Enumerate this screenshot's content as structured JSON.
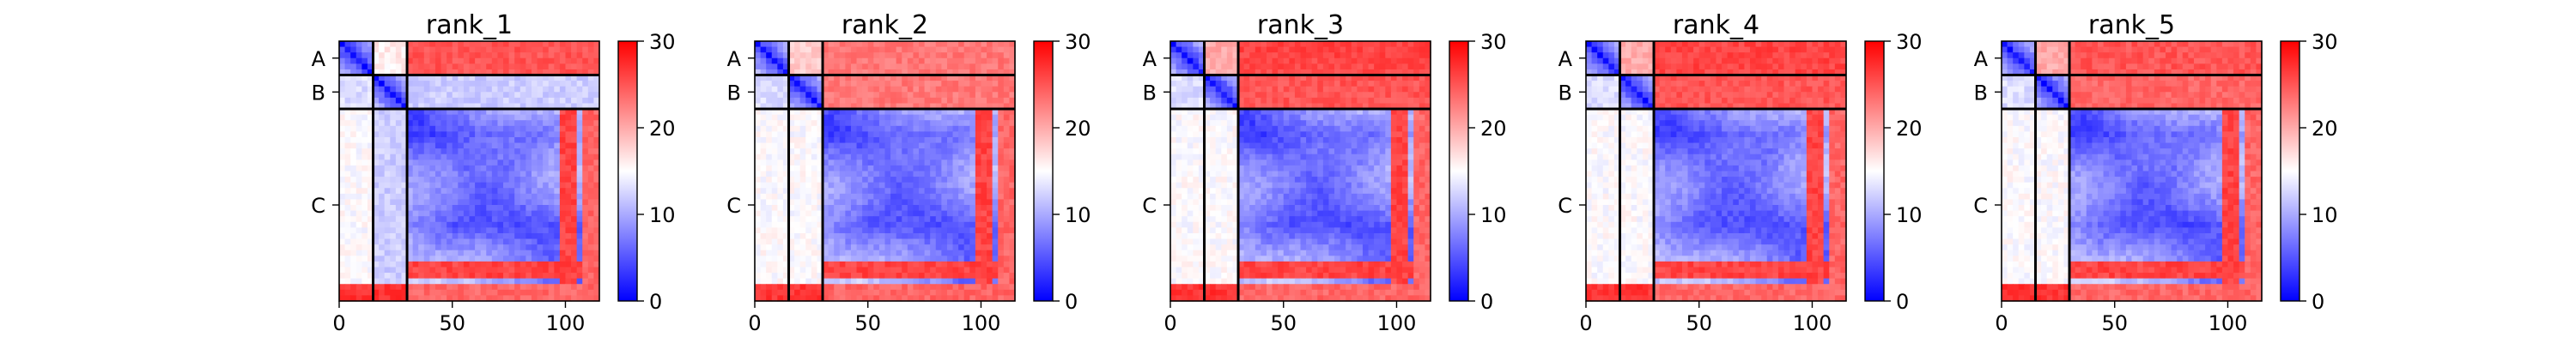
{
  "chart_data": [
    {
      "type": "heatmap",
      "title": "rank_1",
      "x_ticks": [
        "0",
        "50",
        "100"
      ],
      "x_tick_values": [
        0,
        50,
        100
      ],
      "xlim": [
        0,
        115
      ],
      "chain_labels": [
        "A",
        "B",
        "C"
      ],
      "chain_boundaries": [
        0,
        15,
        30,
        115
      ],
      "colorbar": {
        "min": 0,
        "max": 30,
        "ticks": [
          "0",
          "10",
          "20",
          "30"
        ],
        "tick_values": [
          0,
          10,
          20,
          30
        ],
        "colors": [
          "#0000ff",
          "#ffffff",
          "#ff0000"
        ]
      },
      "inter_chain_level": {
        "A-B": 16,
        "A-C": 25,
        "B-C": 12
      }
    },
    {
      "type": "heatmap",
      "title": "rank_2",
      "x_ticks": [
        "0",
        "50",
        "100"
      ],
      "x_tick_values": [
        0,
        50,
        100
      ],
      "xlim": [
        0,
        115
      ],
      "chain_labels": [
        "A",
        "B",
        "C"
      ],
      "chain_boundaries": [
        0,
        15,
        30,
        115
      ],
      "colorbar": {
        "min": 0,
        "max": 30,
        "ticks": [
          "0",
          "10",
          "20",
          "30"
        ],
        "tick_values": [
          0,
          10,
          20,
          30
        ],
        "colors": [
          "#0000ff",
          "#ffffff",
          "#ff0000"
        ]
      },
      "inter_chain_level": {
        "A-B": 18,
        "A-C": 23,
        "B-C": 23
      }
    },
    {
      "type": "heatmap",
      "title": "rank_3",
      "x_ticks": [
        "0",
        "50",
        "100"
      ],
      "x_tick_values": [
        0,
        50,
        100
      ],
      "xlim": [
        0,
        115
      ],
      "chain_labels": [
        "A",
        "B",
        "C"
      ],
      "chain_boundaries": [
        0,
        15,
        30,
        115
      ],
      "colorbar": {
        "min": 0,
        "max": 30,
        "ticks": [
          "0",
          "10",
          "20",
          "30"
        ],
        "tick_values": [
          0,
          10,
          20,
          30
        ],
        "colors": [
          "#0000ff",
          "#ffffff",
          "#ff0000"
        ]
      },
      "inter_chain_level": {
        "A-B": 20,
        "A-C": 26,
        "B-C": 25
      }
    },
    {
      "type": "heatmap",
      "title": "rank_4",
      "x_ticks": [
        "0",
        "50",
        "100"
      ],
      "x_tick_values": [
        0,
        50,
        100
      ],
      "xlim": [
        0,
        115
      ],
      "chain_labels": [
        "A",
        "B",
        "C"
      ],
      "chain_boundaries": [
        0,
        15,
        30,
        115
      ],
      "colorbar": {
        "min": 0,
        "max": 30,
        "ticks": [
          "0",
          "10",
          "20",
          "30"
        ],
        "tick_values": [
          0,
          10,
          20,
          30
        ],
        "colors": [
          "#0000ff",
          "#ffffff",
          "#ff0000"
        ]
      },
      "inter_chain_level": {
        "A-B": 20,
        "A-C": 26,
        "B-C": 25
      }
    },
    {
      "type": "heatmap",
      "title": "rank_5",
      "x_ticks": [
        "0",
        "50",
        "100"
      ],
      "x_tick_values": [
        0,
        50,
        100
      ],
      "xlim": [
        0,
        115
      ],
      "chain_labels": [
        "A",
        "B",
        "C"
      ],
      "chain_boundaries": [
        0,
        15,
        30,
        115
      ],
      "colorbar": {
        "min": 0,
        "max": 30,
        "ticks": [
          "0",
          "10",
          "20",
          "30"
        ],
        "tick_values": [
          0,
          10,
          20,
          30
        ],
        "colors": [
          "#0000ff",
          "#ffffff",
          "#ff0000"
        ]
      },
      "inter_chain_level": {
        "A-B": 20,
        "A-C": 25,
        "B-C": 24
      }
    }
  ]
}
